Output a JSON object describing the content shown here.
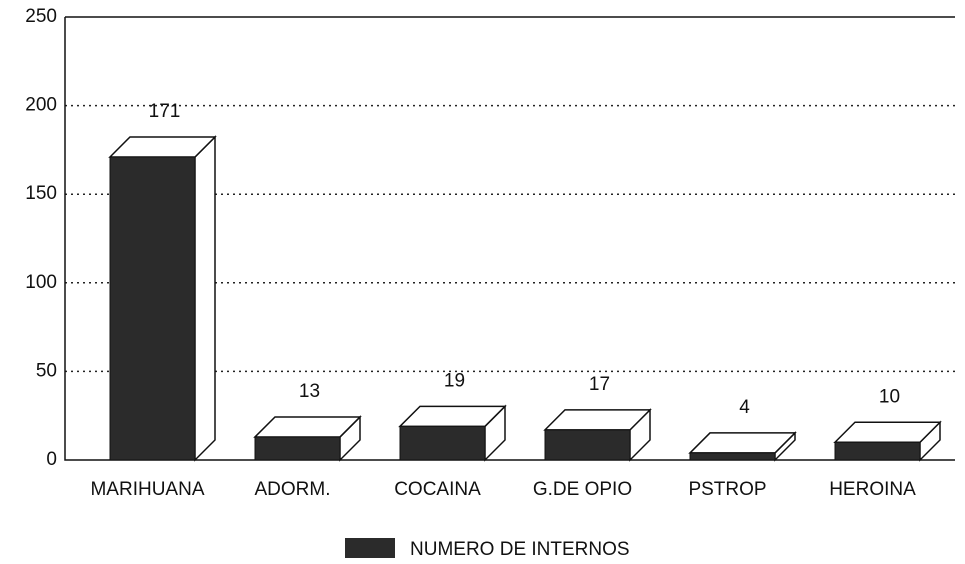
{
  "chart_data": {
    "type": "bar3d",
    "categories": [
      "MARIHUANA",
      "ADORM.",
      "COCAINA",
      "G.DE OPIO",
      "PSTROP",
      "HEROINA"
    ],
    "series": [
      {
        "name": "NUMERO DE INTERNOS",
        "color": "#2b2b2b",
        "values": [
          171,
          13,
          19,
          17,
          4,
          10
        ]
      }
    ],
    "ylim": [
      0,
      250
    ],
    "yticks": [
      0,
      50,
      100,
      150,
      200,
      250
    ],
    "grid": true,
    "legend": "bottom"
  }
}
